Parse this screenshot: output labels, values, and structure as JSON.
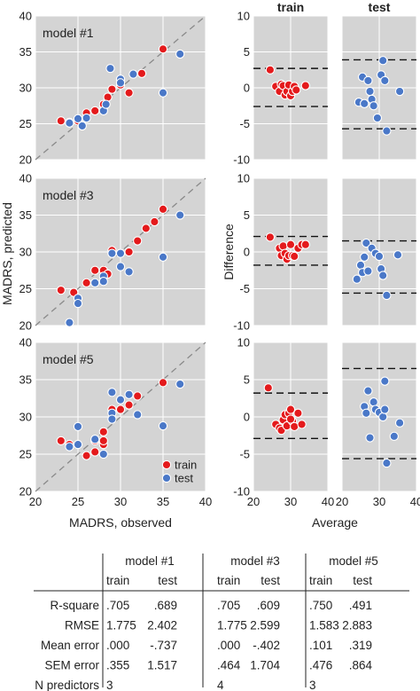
{
  "colors": {
    "train": "#e41a1c",
    "test": "#4a78c8",
    "panel_bg": "#d4d4d4",
    "grid": "#ffffff"
  },
  "chart_data": [
    {
      "type": "scatter",
      "panel_label": "model #1",
      "xlim": [
        20,
        40
      ],
      "ylim": [
        20,
        40
      ],
      "xticks": [
        20,
        25,
        30,
        35,
        40
      ],
      "yticks": [
        20,
        25,
        30,
        35,
        40
      ],
      "identity_line": true,
      "series": [
        {
          "name": "train",
          "points": [
            [
              23,
              25.4
            ],
            [
              24,
              25.2
            ],
            [
              25,
              25.4
            ],
            [
              26,
              26.5
            ],
            [
              27,
              26.8
            ],
            [
              28,
              27.2
            ],
            [
              28,
              27.7
            ],
            [
              28.5,
              28.7
            ],
            [
              29,
              29.8
            ],
            [
              30,
              30.4
            ],
            [
              31,
              29.3
            ],
            [
              32.5,
              32
            ],
            [
              35,
              35.4
            ]
          ]
        },
        {
          "name": "test",
          "points": [
            [
              24,
              25.1
            ],
            [
              25,
              25.7
            ],
            [
              25.5,
              24.7
            ],
            [
              26,
              25.8
            ],
            [
              28,
              26.8
            ],
            [
              28.3,
              27.7
            ],
            [
              28.8,
              32.7
            ],
            [
              30,
              31.2
            ],
            [
              30,
              30.7
            ],
            [
              31.5,
              31.9
            ],
            [
              35,
              29.3
            ],
            [
              37,
              34.7
            ]
          ]
        }
      ]
    },
    {
      "type": "scatter",
      "panel_label": "model #3",
      "xlim": [
        20,
        40
      ],
      "ylim": [
        20,
        40
      ],
      "xticks": [
        20,
        25,
        30,
        35,
        40
      ],
      "yticks": [
        20,
        25,
        30,
        35,
        40
      ],
      "identity_line": true,
      "series": [
        {
          "name": "train",
          "points": [
            [
              23,
              24.8
            ],
            [
              24.5,
              24.5
            ],
            [
              26,
              25.8
            ],
            [
              27,
              27.5
            ],
            [
              28,
              27.5
            ],
            [
              29,
              29.8
            ],
            [
              29,
              30.2
            ],
            [
              31,
              30
            ],
            [
              32,
              31.5
            ],
            [
              33,
              33.2
            ],
            [
              34,
              34.1
            ],
            [
              35,
              35.8
            ],
            [
              28.5,
              27
            ]
          ]
        },
        {
          "name": "test",
          "points": [
            [
              24,
              20.4
            ],
            [
              25,
              23.7
            ],
            [
              25,
              23
            ],
            [
              27,
              25.8
            ],
            [
              28,
              26.7
            ],
            [
              28,
              26
            ],
            [
              29,
              29.8
            ],
            [
              30,
              29.8
            ],
            [
              30,
              28
            ],
            [
              31,
              27.3
            ],
            [
              35,
              29.3
            ],
            [
              37,
              35
            ]
          ]
        }
      ]
    },
    {
      "type": "scatter",
      "panel_label": "model #5",
      "xlim": [
        20,
        40
      ],
      "ylim": [
        20,
        40
      ],
      "xticks": [
        20,
        25,
        30,
        35,
        40
      ],
      "yticks": [
        20,
        25,
        30,
        35,
        40
      ],
      "identity_line": true,
      "legend": [
        "train",
        "test"
      ],
      "legend_position": "bottom-right",
      "xlabel": "MADRS, observed",
      "ylabel": "MADRS, predicted",
      "series": [
        {
          "name": "train",
          "points": [
            [
              23,
              26.8
            ],
            [
              24,
              26.3
            ],
            [
              26,
              24.8
            ],
            [
              27,
              25.3
            ],
            [
              27,
              26.8
            ],
            [
              28,
              26.3
            ],
            [
              28,
              26.8
            ],
            [
              28,
              28
            ],
            [
              29,
              31
            ],
            [
              30,
              31
            ],
            [
              31,
              31.6
            ],
            [
              32,
              32.8
            ],
            [
              35,
              34.6
            ]
          ]
        },
        {
          "name": "test",
          "points": [
            [
              24,
              26
            ],
            [
              25,
              28.7
            ],
            [
              25,
              26.3
            ],
            [
              27,
              27
            ],
            [
              28,
              25
            ],
            [
              29,
              33.3
            ],
            [
              29,
              30.5
            ],
            [
              29,
              29.7
            ],
            [
              30,
              32.3
            ],
            [
              31,
              33
            ],
            [
              32,
              30.3
            ],
            [
              35,
              28.8
            ],
            [
              37,
              34.4
            ]
          ]
        }
      ]
    },
    {
      "type": "scatter",
      "column_title": "train",
      "xlim": [
        20,
        40
      ],
      "ylim": [
        -10,
        10
      ],
      "xticks": [
        20,
        30,
        40
      ],
      "yticks": [
        -10,
        -5,
        0,
        5,
        10
      ],
      "series": [
        {
          "name": "train",
          "points": [
            [
              24.5,
              2.5
            ],
            [
              26,
              0.2
            ],
            [
              27,
              -0.5
            ],
            [
              27.5,
              0.5
            ],
            [
              28,
              0.3
            ],
            [
              28.5,
              -1
            ],
            [
              29,
              -0.5
            ],
            [
              29.5,
              0.4
            ],
            [
              30,
              -1.1
            ],
            [
              30.5,
              -0.5
            ],
            [
              31,
              0.2
            ],
            [
              31.5,
              -0.3
            ],
            [
              34,
              0.3
            ]
          ]
        }
      ],
      "limit_lines": [
        2.7,
        -2.6
      ]
    },
    {
      "type": "scatter",
      "column_title": "test",
      "xlim": [
        20,
        40
      ],
      "ylim": [
        -10,
        10
      ],
      "xticks": [
        20,
        30,
        40
      ],
      "yticks": [
        -10,
        -5,
        0,
        5,
        10
      ],
      "series": [
        {
          "name": "test",
          "points": [
            [
              24.5,
              -2
            ],
            [
              25.5,
              1.5
            ],
            [
              26,
              -2.2
            ],
            [
              27,
              1
            ],
            [
              27.5,
              -0.5
            ],
            [
              28,
              -1.6
            ],
            [
              28.5,
              -2.5
            ],
            [
              29.5,
              -4.2
            ],
            [
              30.5,
              1.8
            ],
            [
              31,
              3.8
            ],
            [
              31.5,
              1
            ],
            [
              32,
              -6
            ],
            [
              35.5,
              -0.5
            ]
          ]
        }
      ],
      "limit_lines": [
        3.9,
        -5.7
      ]
    },
    {
      "type": "scatter",
      "xlim": [
        20,
        40
      ],
      "ylim": [
        -10,
        10
      ],
      "xticks": [
        20,
        30,
        40
      ],
      "yticks": [
        -10,
        -5,
        0,
        5,
        10
      ],
      "ylabel": "Difference",
      "series": [
        {
          "name": "train",
          "points": [
            [
              24.5,
              2
            ],
            [
              27,
              0.5
            ],
            [
              27.5,
              -0.5
            ],
            [
              28,
              0.8
            ],
            [
              28.5,
              -0.2
            ],
            [
              29,
              -1
            ],
            [
              29.5,
              -0.5
            ],
            [
              30,
              1
            ],
            [
              30.5,
              -0.5
            ],
            [
              31,
              -0.6
            ],
            [
              32,
              0.5
            ],
            [
              33,
              1
            ],
            [
              34,
              1
            ]
          ]
        }
      ],
      "limit_lines": [
        2.1,
        -1.8
      ]
    },
    {
      "type": "scatter",
      "xlim": [
        20,
        40
      ],
      "ylim": [
        -10,
        10
      ],
      "xticks": [
        20,
        30,
        40
      ],
      "yticks": [
        -10,
        -5,
        0,
        5,
        10
      ],
      "series": [
        {
          "name": "test",
          "points": [
            [
              24,
              -3.7
            ],
            [
              25,
              -1.8
            ],
            [
              25.5,
              -2.8
            ],
            [
              26,
              -0.7
            ],
            [
              26.5,
              1.2
            ],
            [
              27,
              -2.6
            ],
            [
              28,
              0.5
            ],
            [
              29,
              -0.2
            ],
            [
              30,
              -0.6
            ],
            [
              30.5,
              -2.3
            ],
            [
              31,
              -3.2
            ],
            [
              32,
              -5.9
            ],
            [
              35,
              -0.4
            ]
          ]
        }
      ],
      "limit_lines": [
        1.5,
        -5.6
      ]
    },
    {
      "type": "scatter",
      "xlim": [
        20,
        40
      ],
      "ylim": [
        -10,
        10
      ],
      "xticks": [
        20,
        30,
        40
      ],
      "yticks": [
        -10,
        -5,
        0,
        5,
        10
      ],
      "xlabel": "Average",
      "series": [
        {
          "name": "train",
          "points": [
            [
              24,
              3.9
            ],
            [
              26,
              -1
            ],
            [
              27,
              -1.5
            ],
            [
              27.5,
              -1.8
            ],
            [
              28,
              -0.4
            ],
            [
              28.5,
              0.3
            ],
            [
              29,
              -1.2
            ],
            [
              29.5,
              0.5
            ],
            [
              30,
              1
            ],
            [
              30.5,
              -0.6
            ],
            [
              31,
              -1.3
            ],
            [
              32,
              0.5
            ],
            [
              33,
              -1
            ],
            [
              30,
              -0.3
            ]
          ]
        }
      ],
      "limit_lines": [
        3.2,
        -2.9
      ]
    },
    {
      "type": "scatter",
      "xlim": [
        20,
        40
      ],
      "ylim": [
        -10,
        10
      ],
      "xlabel": "Average",
      "xticks": [
        20,
        30,
        40
      ],
      "yticks": [
        -10,
        -5,
        0,
        5,
        10
      ],
      "series": [
        {
          "name": "test",
          "points": [
            [
              26,
              1.4
            ],
            [
              26.5,
              0.5
            ],
            [
              27,
              3.5
            ],
            [
              27.5,
              -2.8
            ],
            [
              28.5,
              2
            ],
            [
              29,
              1
            ],
            [
              30,
              0.6
            ],
            [
              31,
              0
            ],
            [
              31.5,
              4.8
            ],
            [
              31.5,
              1
            ],
            [
              32,
              -6.2
            ],
            [
              34,
              -2.6
            ],
            [
              35.5,
              -0.8
            ]
          ]
        }
      ],
      "limit_lines": [
        6.5,
        -5.6
      ]
    },
    {
      "type": "table",
      "group_headers": [
        "model #1",
        "model #3",
        "model #5"
      ],
      "sub_headers": [
        "train",
        "test",
        "train",
        "test",
        "train",
        "test"
      ],
      "rows": [
        {
          "label": "R-square",
          "values": [
            ".705",
            ".689",
            ".705",
            ".609",
            ".750",
            ".491"
          ]
        },
        {
          "label": "RMSE",
          "values": [
            "1.775",
            "2.402",
            "1.775",
            "2.599",
            "1.583",
            "2.883"
          ]
        },
        {
          "label": "Mean error",
          "values": [
            ".000",
            "-.737",
            ".000",
            "-.402",
            ".101",
            ".319"
          ]
        },
        {
          "label": "SEM error",
          "values": [
            ".355",
            "1.517",
            ".464",
            "1.704",
            ".476",
            ".864"
          ]
        },
        {
          "label": "N predictors",
          "values": [
            "3",
            "",
            "4",
            "",
            "3",
            ""
          ]
        }
      ]
    }
  ]
}
